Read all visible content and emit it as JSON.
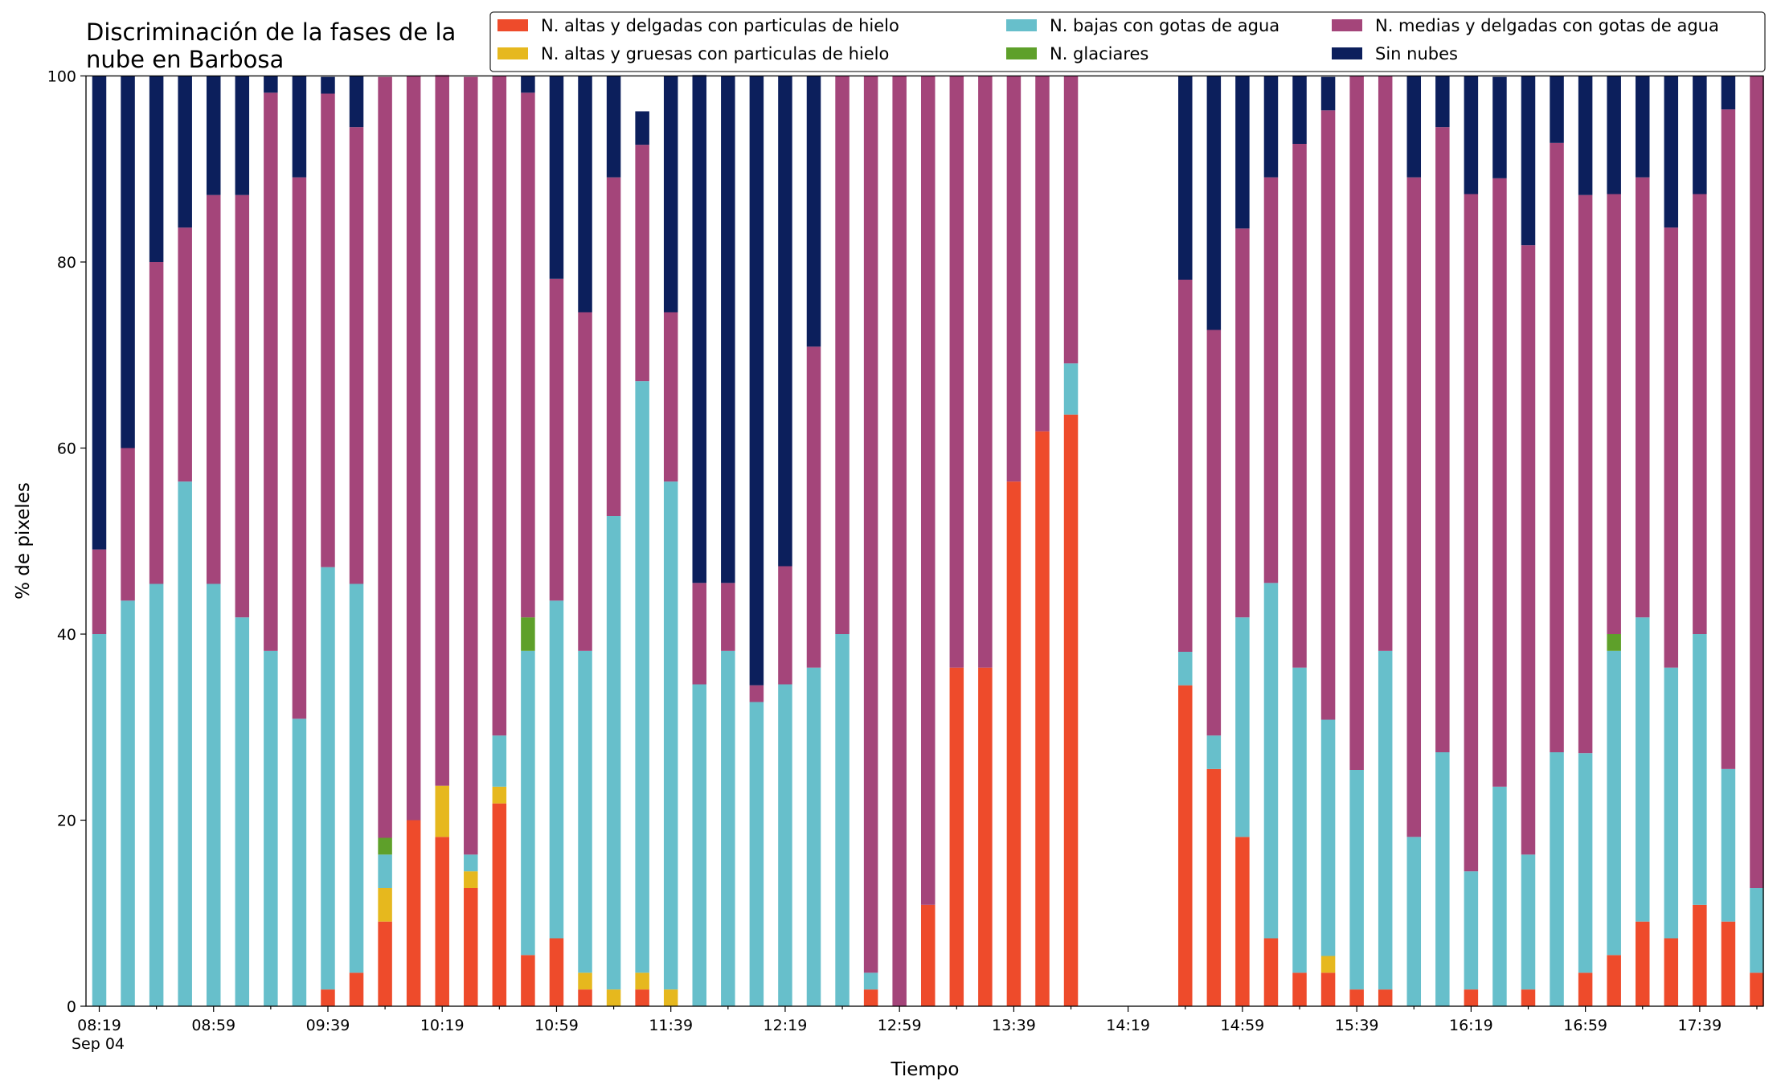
{
  "chart_data": {
    "type": "bar",
    "stacked": true,
    "title_lines": [
      "Discriminación de la fases de la",
      "nube en Barbosa"
    ],
    "xlabel": "Tiempo",
    "ylabel": "% de pixeles",
    "ylim": [
      0,
      100
    ],
    "y_ticks": [
      "0",
      "20",
      "40",
      "60",
      "80",
      "100"
    ],
    "x_ticks": [
      "08:19",
      "08:59",
      "09:39",
      "10:19",
      "10:59",
      "11:39",
      "12:19",
      "12:59",
      "13:39",
      "14:19",
      "14:59",
      "15:39",
      "16:19",
      "16:59",
      "17:39"
    ],
    "x_date_label": "Sep 04",
    "legend_position": "top-right",
    "grid": false,
    "series": [
      {
        "name": "N. altas y delgadas con particulas de hielo",
        "color": "#ee4b2b",
        "values": [
          0,
          0,
          0,
          0,
          0,
          0,
          0,
          0,
          1.8,
          3.6,
          9.1,
          20,
          18.2,
          12.7,
          21.8,
          5.5,
          7.3,
          1.8,
          0,
          1.8,
          0,
          0,
          0,
          0,
          0,
          0,
          0,
          1.8,
          0,
          10.9,
          36.4,
          36.4,
          56.4,
          61.8,
          63.6,
          0,
          0,
          0,
          34.5,
          25.5,
          18.2,
          7.3,
          3.6,
          3.6,
          1.8,
          1.8,
          0,
          0,
          1.8,
          0,
          1.8,
          0,
          3.6,
          5.5,
          9.1,
          7.3,
          10.9,
          9.1,
          3.6
        ]
      },
      {
        "name": "N. altas y gruesas con particulas de hielo",
        "color": "#e6b81e",
        "values": [
          0,
          0,
          0,
          0,
          0,
          0,
          0,
          0,
          0,
          0,
          3.6,
          0,
          5.5,
          1.8,
          1.8,
          0,
          0,
          1.8,
          1.8,
          1.8,
          1.8,
          0,
          0,
          0,
          0,
          0,
          0,
          0,
          0,
          0,
          0,
          0,
          0,
          0,
          0,
          0,
          0,
          0,
          0,
          0,
          0,
          0,
          0,
          1.8,
          0,
          0,
          0,
          0,
          0,
          0,
          0,
          0,
          0,
          0,
          0,
          0,
          0,
          0,
          0
        ]
      },
      {
        "name": "N. bajas con gotas de agua",
        "color": "#67bfcb",
        "values": [
          40,
          43.6,
          45.4,
          56.4,
          45.4,
          41.8,
          38.2,
          30.9,
          45.4,
          41.8,
          3.6,
          0,
          0,
          1.8,
          5.5,
          32.7,
          36.3,
          34.6,
          50.9,
          63.6,
          54.6,
          34.6,
          38.2,
          32.7,
          34.6,
          36.4,
          40,
          1.8,
          0,
          0,
          0,
          0,
          0,
          0,
          5.5,
          0,
          0,
          0,
          3.6,
          3.6,
          23.6,
          38.2,
          32.8,
          25.4,
          23.6,
          36.4,
          18.2,
          27.3,
          12.7,
          23.6,
          14.5,
          27.3,
          23.6,
          32.7,
          32.7,
          29.1,
          29.1,
          16.4,
          9.1
        ]
      },
      {
        "name": "N. glaciares",
        "color": "#5ea02a",
        "values": [
          0,
          0,
          0,
          0,
          0,
          0,
          0,
          0,
          0,
          0,
          1.8,
          0,
          0,
          0,
          0,
          3.6,
          0,
          0,
          0,
          0,
          0,
          0,
          0,
          0,
          0,
          0,
          0,
          0,
          0,
          0,
          0,
          0,
          0,
          0,
          0,
          0,
          0,
          0,
          0,
          0,
          0,
          0,
          0,
          0,
          0,
          0,
          0,
          0,
          0,
          0,
          0,
          0,
          0,
          1.8,
          0,
          0,
          0,
          0,
          0
        ]
      },
      {
        "name": "N. medias y delgadas con gotas de agua",
        "color": "#a4457a",
        "values": [
          9.1,
          16.4,
          34.6,
          27.3,
          41.8,
          45.4,
          60,
          58.2,
          50.9,
          49.1,
          81.8,
          80,
          76.4,
          83.6,
          70.9,
          56.4,
          34.6,
          36.4,
          36.4,
          25.4,
          18.2,
          10.9,
          7.3,
          1.8,
          12.7,
          34.5,
          60,
          96.4,
          100,
          89.1,
          63.6,
          63.6,
          43.6,
          38.2,
          30.9,
          0,
          0,
          0,
          40,
          43.6,
          41.8,
          43.6,
          56.3,
          65.5,
          74.6,
          61.8,
          70.9,
          67.2,
          72.8,
          65.4,
          65.5,
          65.5,
          60,
          47.3,
          47.3,
          47.3,
          47.3,
          70.9,
          87.3
        ]
      },
      {
        "name": "Sin nubes",
        "color": "#0c1f5c",
        "values": [
          50.9,
          40,
          20,
          16.3,
          12.8,
          12.8,
          1.8,
          10.9,
          1.8,
          5.5,
          0,
          0,
          0,
          0,
          0,
          1.8,
          21.8,
          25.4,
          10.9,
          3.6,
          25.4,
          54.6,
          54.5,
          65.5,
          52.7,
          29.1,
          0,
          0,
          0,
          0,
          0,
          0,
          0,
          0,
          0,
          0,
          0,
          0,
          21.9,
          27.3,
          16.4,
          10.9,
          7.3,
          3.6,
          0,
          0,
          10.9,
          5.5,
          12.7,
          10.9,
          18.2,
          7.2,
          12.8,
          12.7,
          10.9,
          16.3,
          12.7,
          3.6,
          0
        ]
      }
    ]
  }
}
